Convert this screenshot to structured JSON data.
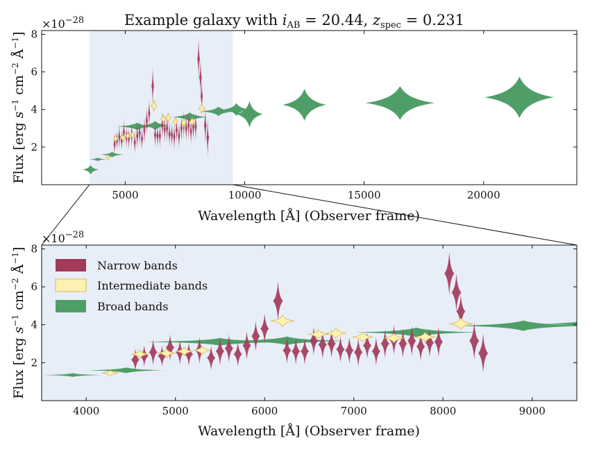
{
  "figure": {
    "title": "Example galaxy with i_AB = 20.44, z_spec = 0.231",
    "title_parts": {
      "prefix": "Example galaxy with ",
      "var1": "i",
      "sub1": "AB",
      "mid": " = 20.44, ",
      "var2": "z",
      "sub2": "spec",
      "suffix": " = 0.231"
    },
    "xlabel": "Wavelength [Å] (Observer frame)",
    "ylabel": "Flux [erg s⁻¹ cm⁻² Å⁻¹]",
    "ylabel_parts": {
      "a": "Flux [erg ",
      "s": "s",
      "b": "cm",
      "c": "Å",
      "d": "]",
      "e1": "−1",
      "e2": "−2",
      "e3": "−1"
    },
    "offset_text": "×10",
    "offset_exp": "−28"
  },
  "colors": {
    "narrow": "#a23a5a",
    "intermediate": "#fbf2b0",
    "intermediate_edge": "#d9b55a",
    "broad": "#4f9e68",
    "zoom_region": "#e8eef7"
  },
  "legend": {
    "placement": "upper-left",
    "entries": [
      {
        "name": "Narrow bands",
        "key": "narrow"
      },
      {
        "name": "Intermediate bands",
        "key": "intermediate"
      },
      {
        "name": "Broad bands",
        "key": "broad"
      }
    ]
  },
  "chart_data": [
    {
      "type": "violin",
      "panel": "top",
      "xlim": [
        1500,
        23900
      ],
      "ylim": [
        0,
        8.2
      ],
      "xticks": [
        5000,
        10000,
        15000,
        20000
      ],
      "yticks": [
        2,
        4,
        6,
        8
      ],
      "highlight_region": [
        3500,
        9500
      ],
      "series": [
        {
          "key": "broad",
          "points": [
            {
              "x": 3550,
              "y": 0.8,
              "w": 700,
              "h": 0.5
            },
            {
              "x": 3850,
              "y": 1.35,
              "w": 700,
              "h": 0.2
            },
            {
              "x": 4450,
              "y": 1.6,
              "w": 1000,
              "h": 0.3
            },
            {
              "x": 5500,
              "y": 3.1,
              "w": 1700,
              "h": 0.4
            },
            {
              "x": 6250,
              "y": 3.15,
              "w": 1200,
              "h": 0.5
            },
            {
              "x": 7700,
              "y": 3.6,
              "w": 1500,
              "h": 0.5
            },
            {
              "x": 8900,
              "y": 3.9,
              "w": 1500,
              "h": 0.5
            },
            {
              "x": 9650,
              "y": 4.0,
              "w": 1100,
              "h": 0.7
            },
            {
              "x": 10200,
              "y": 3.75,
              "w": 1100,
              "h": 1.4
            },
            {
              "x": 12500,
              "y": 4.25,
              "w": 1800,
              "h": 1.7
            },
            {
              "x": 16500,
              "y": 4.35,
              "w": 2900,
              "h": 1.8
            },
            {
              "x": 21500,
              "y": 4.65,
              "w": 2900,
              "h": 2.2
            }
          ]
        },
        {
          "key": "intermediate",
          "points": [
            {
              "x": 4270,
              "y": 1.45,
              "w": 190,
              "h": 0.3
            },
            {
              "x": 4600,
              "y": 2.45,
              "w": 190,
              "h": 0.45
            },
            {
              "x": 4900,
              "y": 2.5,
              "w": 190,
              "h": 0.45
            },
            {
              "x": 5100,
              "y": 2.6,
              "w": 190,
              "h": 0.45
            },
            {
              "x": 5300,
              "y": 2.65,
              "w": 190,
              "h": 0.45
            },
            {
              "x": 6200,
              "y": 4.2,
              "w": 260,
              "h": 0.6
            },
            {
              "x": 6600,
              "y": 3.5,
              "w": 230,
              "h": 0.5
            },
            {
              "x": 6800,
              "y": 3.55,
              "w": 230,
              "h": 0.55
            },
            {
              "x": 7100,
              "y": 3.35,
              "w": 230,
              "h": 0.5
            },
            {
              "x": 7450,
              "y": 3.3,
              "w": 230,
              "h": 0.5
            },
            {
              "x": 7800,
              "y": 3.35,
              "w": 230,
              "h": 0.5
            },
            {
              "x": 8200,
              "y": 4.05,
              "w": 260,
              "h": 0.6
            }
          ]
        },
        {
          "key": "narrow",
          "points": [
            {
              "x": 4550,
              "y": 2.15,
              "w": 95,
              "h": 1.2
            },
            {
              "x": 4650,
              "y": 2.35,
              "w": 95,
              "h": 1.1
            },
            {
              "x": 4750,
              "y": 2.55,
              "w": 95,
              "h": 1.4
            },
            {
              "x": 4850,
              "y": 2.35,
              "w": 95,
              "h": 1.1
            },
            {
              "x": 4940,
              "y": 2.8,
              "w": 95,
              "h": 1.4
            },
            {
              "x": 5050,
              "y": 2.55,
              "w": 95,
              "h": 1.3
            },
            {
              "x": 5150,
              "y": 2.45,
              "w": 95,
              "h": 1.2
            },
            {
              "x": 5270,
              "y": 2.65,
              "w": 95,
              "h": 1.4
            },
            {
              "x": 5400,
              "y": 2.25,
              "w": 95,
              "h": 1.3
            },
            {
              "x": 5500,
              "y": 2.6,
              "w": 95,
              "h": 1.5
            },
            {
              "x": 5600,
              "y": 2.75,
              "w": 95,
              "h": 1.5
            },
            {
              "x": 5700,
              "y": 2.45,
              "w": 95,
              "h": 1.3
            },
            {
              "x": 5800,
              "y": 2.9,
              "w": 95,
              "h": 1.5
            },
            {
              "x": 5900,
              "y": 3.4,
              "w": 95,
              "h": 1.6
            },
            {
              "x": 6000,
              "y": 3.8,
              "w": 95,
              "h": 1.6
            },
            {
              "x": 6150,
              "y": 5.25,
              "w": 110,
              "h": 2.1
            },
            {
              "x": 6250,
              "y": 2.65,
              "w": 95,
              "h": 1.4
            },
            {
              "x": 6350,
              "y": 2.6,
              "w": 95,
              "h": 1.4
            },
            {
              "x": 6450,
              "y": 2.6,
              "w": 95,
              "h": 1.4
            },
            {
              "x": 6550,
              "y": 3.15,
              "w": 95,
              "h": 1.5
            },
            {
              "x": 6650,
              "y": 2.95,
              "w": 95,
              "h": 1.5
            },
            {
              "x": 6750,
              "y": 3.0,
              "w": 95,
              "h": 1.5
            },
            {
              "x": 6850,
              "y": 2.7,
              "w": 95,
              "h": 1.4
            },
            {
              "x": 6950,
              "y": 2.65,
              "w": 95,
              "h": 1.4
            },
            {
              "x": 7050,
              "y": 2.55,
              "w": 95,
              "h": 1.5
            },
            {
              "x": 7150,
              "y": 2.9,
              "w": 95,
              "h": 1.4
            },
            {
              "x": 7250,
              "y": 2.6,
              "w": 95,
              "h": 1.5
            },
            {
              "x": 7350,
              "y": 3.0,
              "w": 95,
              "h": 1.5
            },
            {
              "x": 7450,
              "y": 3.2,
              "w": 95,
              "h": 1.6
            },
            {
              "x": 7550,
              "y": 3.0,
              "w": 95,
              "h": 1.5
            },
            {
              "x": 7650,
              "y": 3.15,
              "w": 95,
              "h": 1.6
            },
            {
              "x": 7750,
              "y": 2.85,
              "w": 95,
              "h": 1.5
            },
            {
              "x": 7850,
              "y": 3.05,
              "w": 95,
              "h": 1.5
            },
            {
              "x": 7950,
              "y": 3.1,
              "w": 95,
              "h": 1.6
            },
            {
              "x": 8070,
              "y": 6.7,
              "w": 110,
              "h": 2.3
            },
            {
              "x": 8150,
              "y": 5.7,
              "w": 110,
              "h": 2.0
            },
            {
              "x": 8200,
              "y": 4.7,
              "w": 100,
              "h": 1.8
            },
            {
              "x": 8350,
              "y": 3.15,
              "w": 110,
              "h": 2.0
            },
            {
              "x": 8450,
              "y": 2.5,
              "w": 110,
              "h": 2.1
            }
          ]
        }
      ]
    },
    {
      "type": "violin",
      "panel": "bottom-zoom",
      "xlim": [
        3500,
        9500
      ],
      "ylim": [
        0,
        8.2
      ],
      "xticks": [
        4000,
        5000,
        6000,
        7000,
        8000,
        9000
      ],
      "yticks": [
        2,
        4,
        6,
        8
      ],
      "series": [
        {
          "key": "broad",
          "points": [
            {
              "x": 3850,
              "y": 1.35,
              "w": 650,
              "h": 0.2
            },
            {
              "x": 4450,
              "y": 1.6,
              "w": 900,
              "h": 0.3
            },
            {
              "x": 5500,
              "y": 3.1,
              "w": 1700,
              "h": 0.4
            },
            {
              "x": 6250,
              "y": 3.15,
              "w": 1300,
              "h": 0.45
            },
            {
              "x": 7700,
              "y": 3.6,
              "w": 1400,
              "h": 0.5
            },
            {
              "x": 8900,
              "y": 3.95,
              "w": 1500,
              "h": 0.55
            },
            {
              "x": 9650,
              "y": 4.05,
              "w": 1000,
              "h": 0.5
            }
          ]
        },
        {
          "key": "intermediate",
          "points": [
            {
              "x": 4270,
              "y": 1.45,
              "w": 190,
              "h": 0.3
            },
            {
              "x": 4600,
              "y": 2.45,
              "w": 190,
              "h": 0.45
            },
            {
              "x": 4900,
              "y": 2.5,
              "w": 190,
              "h": 0.45
            },
            {
              "x": 5100,
              "y": 2.6,
              "w": 190,
              "h": 0.45
            },
            {
              "x": 5300,
              "y": 2.65,
              "w": 190,
              "h": 0.45
            },
            {
              "x": 6200,
              "y": 4.2,
              "w": 260,
              "h": 0.6
            },
            {
              "x": 6600,
              "y": 3.5,
              "w": 230,
              "h": 0.5
            },
            {
              "x": 6800,
              "y": 3.55,
              "w": 230,
              "h": 0.55
            },
            {
              "x": 7100,
              "y": 3.35,
              "w": 230,
              "h": 0.5
            },
            {
              "x": 7450,
              "y": 3.3,
              "w": 230,
              "h": 0.5
            },
            {
              "x": 7800,
              "y": 3.35,
              "w": 230,
              "h": 0.5
            },
            {
              "x": 8200,
              "y": 4.05,
              "w": 260,
              "h": 0.6
            }
          ]
        },
        {
          "key": "narrow",
          "points": [
            {
              "x": 4550,
              "y": 2.15,
              "w": 95,
              "h": 1.2
            },
            {
              "x": 4650,
              "y": 2.35,
              "w": 95,
              "h": 1.1
            },
            {
              "x": 4750,
              "y": 2.55,
              "w": 95,
              "h": 1.4
            },
            {
              "x": 4850,
              "y": 2.35,
              "w": 95,
              "h": 1.1
            },
            {
              "x": 4940,
              "y": 2.8,
              "w": 95,
              "h": 1.4
            },
            {
              "x": 5050,
              "y": 2.55,
              "w": 95,
              "h": 1.3
            },
            {
              "x": 5150,
              "y": 2.45,
              "w": 95,
              "h": 1.2
            },
            {
              "x": 5270,
              "y": 2.65,
              "w": 95,
              "h": 1.4
            },
            {
              "x": 5400,
              "y": 2.25,
              "w": 95,
              "h": 1.3
            },
            {
              "x": 5500,
              "y": 2.6,
              "w": 95,
              "h": 1.5
            },
            {
              "x": 5600,
              "y": 2.75,
              "w": 95,
              "h": 1.5
            },
            {
              "x": 5700,
              "y": 2.45,
              "w": 95,
              "h": 1.3
            },
            {
              "x": 5800,
              "y": 2.9,
              "w": 95,
              "h": 1.5
            },
            {
              "x": 5900,
              "y": 3.4,
              "w": 95,
              "h": 1.6
            },
            {
              "x": 6000,
              "y": 3.8,
              "w": 95,
              "h": 1.6
            },
            {
              "x": 6150,
              "y": 5.25,
              "w": 110,
              "h": 2.1
            },
            {
              "x": 6250,
              "y": 2.65,
              "w": 95,
              "h": 1.4
            },
            {
              "x": 6350,
              "y": 2.6,
              "w": 95,
              "h": 1.4
            },
            {
              "x": 6450,
              "y": 2.6,
              "w": 95,
              "h": 1.4
            },
            {
              "x": 6550,
              "y": 3.15,
              "w": 95,
              "h": 1.5
            },
            {
              "x": 6650,
              "y": 2.95,
              "w": 95,
              "h": 1.5
            },
            {
              "x": 6750,
              "y": 3.0,
              "w": 95,
              "h": 1.5
            },
            {
              "x": 6850,
              "y": 2.7,
              "w": 95,
              "h": 1.4
            },
            {
              "x": 6950,
              "y": 2.65,
              "w": 95,
              "h": 1.4
            },
            {
              "x": 7050,
              "y": 2.55,
              "w": 95,
              "h": 1.5
            },
            {
              "x": 7150,
              "y": 2.9,
              "w": 95,
              "h": 1.4
            },
            {
              "x": 7250,
              "y": 2.6,
              "w": 95,
              "h": 1.5
            },
            {
              "x": 7350,
              "y": 3.0,
              "w": 95,
              "h": 1.5
            },
            {
              "x": 7450,
              "y": 3.2,
              "w": 95,
              "h": 1.6
            },
            {
              "x": 7550,
              "y": 3.0,
              "w": 95,
              "h": 1.5
            },
            {
              "x": 7650,
              "y": 3.15,
              "w": 95,
              "h": 1.6
            },
            {
              "x": 7750,
              "y": 2.85,
              "w": 95,
              "h": 1.5
            },
            {
              "x": 7850,
              "y": 3.05,
              "w": 95,
              "h": 1.5
            },
            {
              "x": 7950,
              "y": 3.1,
              "w": 95,
              "h": 1.6
            },
            {
              "x": 8070,
              "y": 6.7,
              "w": 110,
              "h": 2.3
            },
            {
              "x": 8150,
              "y": 5.7,
              "w": 110,
              "h": 2.0
            },
            {
              "x": 8200,
              "y": 4.7,
              "w": 100,
              "h": 1.8
            },
            {
              "x": 8350,
              "y": 3.15,
              "w": 110,
              "h": 2.0
            },
            {
              "x": 8450,
              "y": 2.5,
              "w": 110,
              "h": 2.1
            }
          ]
        }
      ]
    }
  ]
}
